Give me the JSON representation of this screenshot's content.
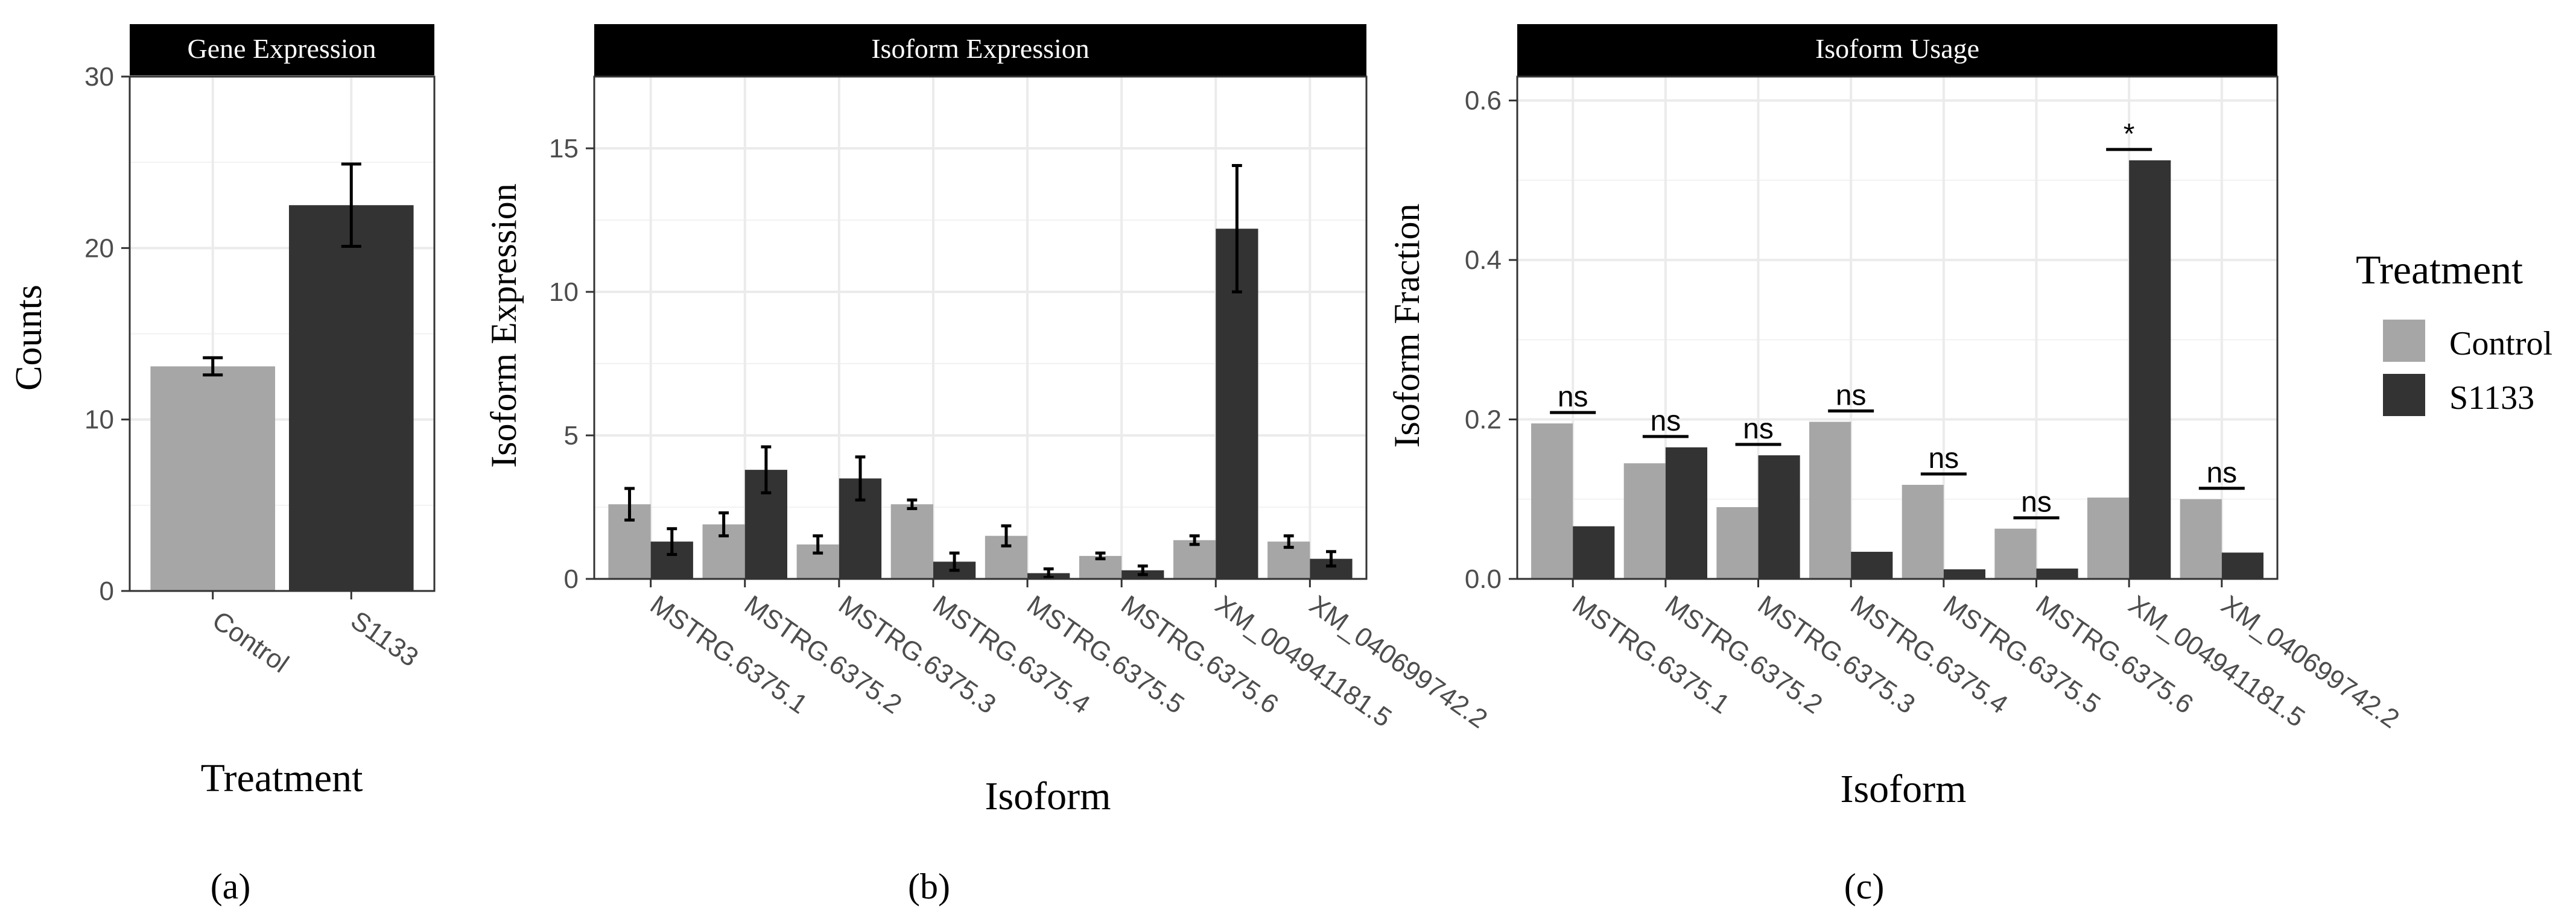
{
  "colors": {
    "control": "#a6a6a6",
    "s1133": "#333333",
    "strip_bg": "#000000",
    "strip_text": "#ffffff",
    "grid": "#ebebeb",
    "panel_border": "#333333"
  },
  "legend": {
    "title": "Treatment",
    "items": [
      {
        "key": "control",
        "label": "Control"
      },
      {
        "key": "s1133",
        "label": "S1133"
      }
    ]
  },
  "chart_data": [
    {
      "id": "a",
      "type": "bar",
      "panel_label": "(a)",
      "title": "Gene Expression",
      "xlabel": "Treatment",
      "ylabel": "Counts",
      "ylim": [
        0,
        30
      ],
      "yticks": [
        0,
        10,
        20,
        30
      ],
      "ytick_labels": [
        "0",
        "10",
        "20",
        "30"
      ],
      "categories": [
        "Control",
        "S1133"
      ],
      "series": [
        {
          "name": "Counts",
          "fills": [
            "control",
            "s1133"
          ],
          "values": [
            13.1,
            22.5
          ],
          "errors": [
            0.5,
            2.4
          ]
        }
      ]
    },
    {
      "id": "b",
      "type": "bar",
      "panel_label": "(b)",
      "title": "Isoform Expression",
      "xlabel": "Isoform",
      "ylabel": "Isoform Expression",
      "ylim": [
        0,
        17.5
      ],
      "yticks": [
        0,
        5,
        10,
        15
      ],
      "ytick_labels": [
        "0",
        "5",
        "10",
        "15"
      ],
      "categories": [
        "MSTRG.6375.1",
        "MSTRG.6375.2",
        "MSTRG.6375.3",
        "MSTRG.6375.4",
        "MSTRG.6375.5",
        "MSTRG.6375.6",
        "XM_004941181.5",
        "XM_040699742.2"
      ],
      "series": [
        {
          "name": "Control",
          "key": "control",
          "values": [
            2.6,
            1.9,
            1.2,
            2.6,
            1.5,
            0.8,
            1.35,
            1.3
          ],
          "errors": [
            0.55,
            0.4,
            0.3,
            0.15,
            0.35,
            0.1,
            0.15,
            0.2
          ]
        },
        {
          "name": "S1133",
          "key": "s1133",
          "values": [
            1.3,
            3.8,
            3.5,
            0.6,
            0.2,
            0.3,
            12.2,
            0.7
          ],
          "errors": [
            0.45,
            0.8,
            0.75,
            0.3,
            0.15,
            0.15,
            2.2,
            0.25
          ]
        }
      ]
    },
    {
      "id": "c",
      "type": "bar",
      "panel_label": "(c)",
      "title": "Isoform Usage",
      "xlabel": "Isoform",
      "ylabel": "Isoform Fraction",
      "ylim": [
        0,
        0.63
      ],
      "yticks": [
        0,
        0.2,
        0.4,
        0.6
      ],
      "ytick_labels": [
        "0.0",
        "0.2",
        "0.4",
        "0.6"
      ],
      "categories": [
        "MSTRG.6375.1",
        "MSTRG.6375.2",
        "MSTRG.6375.3",
        "MSTRG.6375.4",
        "MSTRG.6375.5",
        "MSTRG.6375.6",
        "XM_004941181.5",
        "XM_040699742.2"
      ],
      "series": [
        {
          "name": "Control",
          "key": "control",
          "values": [
            0.195,
            0.145,
            0.09,
            0.197,
            0.118,
            0.063,
            0.102,
            0.1
          ]
        },
        {
          "name": "S1133",
          "key": "s1133",
          "values": [
            0.066,
            0.165,
            0.155,
            0.034,
            0.012,
            0.013,
            0.525,
            0.033
          ]
        }
      ],
      "annotations": [
        "ns",
        "ns",
        "ns",
        "ns",
        "ns",
        "ns",
        "*",
        "ns"
      ]
    }
  ]
}
